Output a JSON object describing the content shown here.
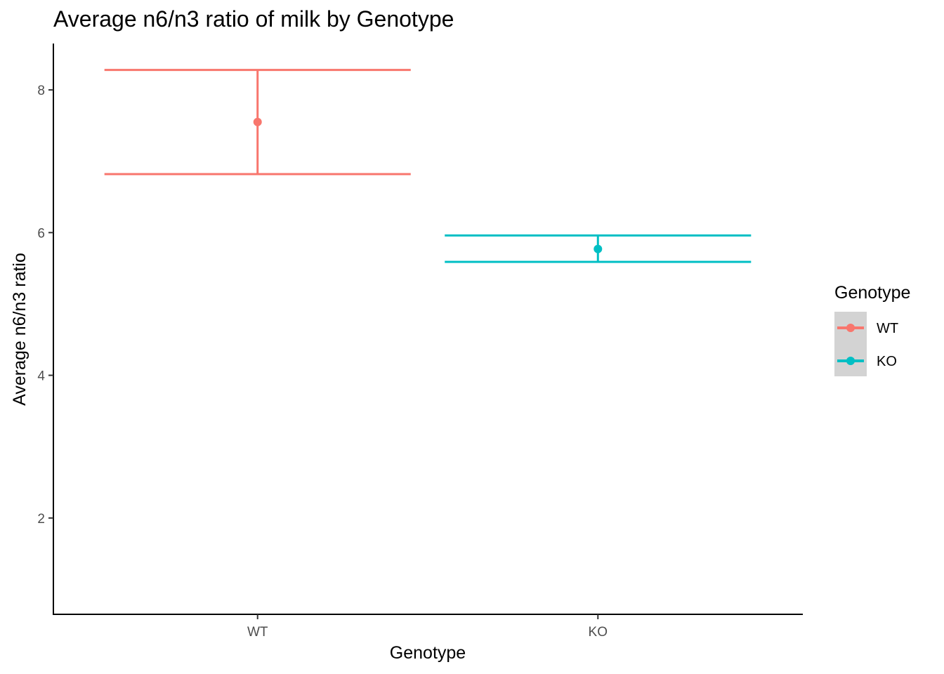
{
  "chart_data": {
    "type": "errorbar",
    "title": "Average n6/n3 ratio of milk by Genotype",
    "xlabel": "Genotype",
    "ylabel": "Average n6/n3 ratio",
    "categories": [
      "WT",
      "KO"
    ],
    "ylim": [
      0.65,
      8.65
    ],
    "yticks": [
      2,
      4,
      6,
      8
    ],
    "grid": false,
    "series": [
      {
        "name": "WT",
        "category": "WT",
        "mean": 7.55,
        "lower": 6.82,
        "upper": 8.28,
        "color": "#F8766D"
      },
      {
        "name": "KO",
        "category": "KO",
        "mean": 5.77,
        "lower": 5.59,
        "upper": 5.96,
        "color": "#00BFC4"
      }
    ],
    "legend": {
      "title": "Genotype",
      "position": "right",
      "entries": [
        "WT",
        "KO"
      ]
    }
  }
}
